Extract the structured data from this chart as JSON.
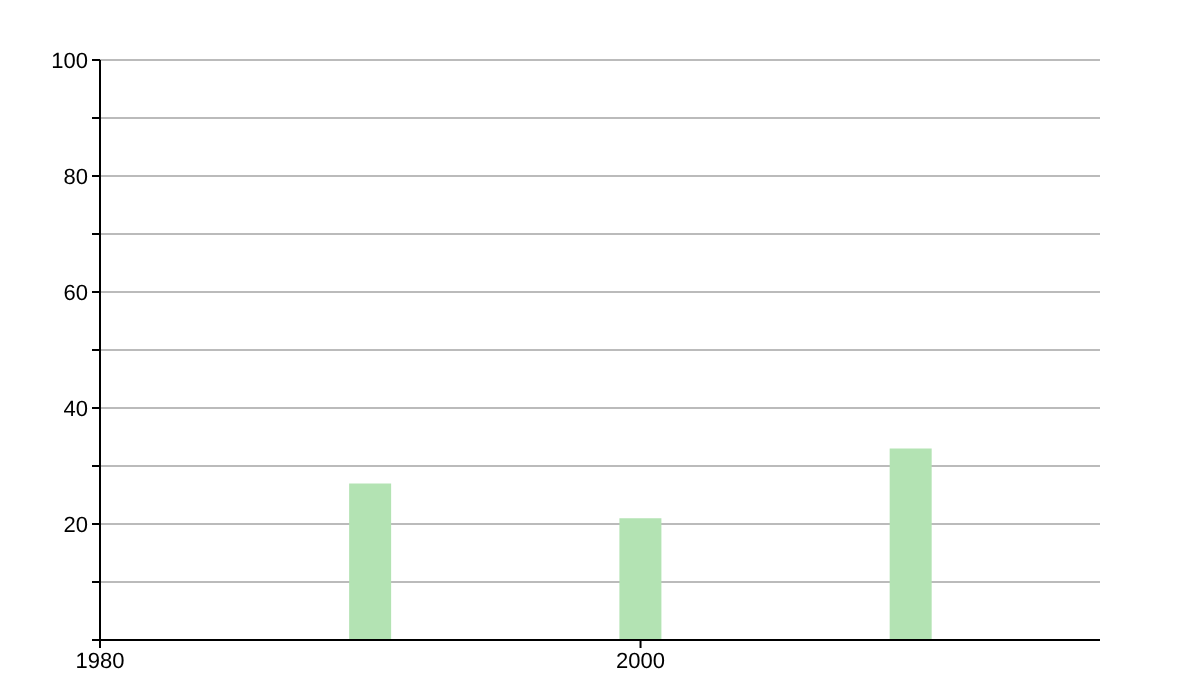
{
  "chart_data": {
    "type": "bar",
    "x": [
      1990,
      2000,
      2010
    ],
    "values": [
      27,
      21,
      33
    ],
    "color": "#b3e3b3",
    "xlim": [
      1980,
      2017
    ],
    "xticks": [
      1980,
      2000
    ],
    "ylim": [
      0,
      100
    ],
    "yticks": [
      {
        "value": 0,
        "label": null
      },
      {
        "value": 10,
        "label": null
      },
      20,
      {
        "value": 30,
        "label": null
      },
      40,
      {
        "value": 50,
        "label": null
      },
      60,
      {
        "value": 70,
        "label": null
      },
      80,
      {
        "value": 90,
        "label": null
      },
      100
    ],
    "grid": "y"
  }
}
